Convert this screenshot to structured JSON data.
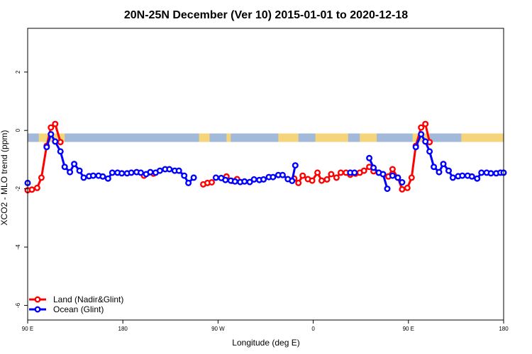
{
  "chart_data": {
    "type": "line",
    "title": "20N-25N December (Ver 10)   2015-01-01 to 2020-12-18",
    "xlabel": "Longitude (deg E)",
    "ylabel": "XCO2 - MLO trend (ppm)",
    "xlim": [
      90,
      540
    ],
    "ylim": [
      -6.5,
      3.5
    ],
    "x_ticks": [
      {
        "value": 90,
        "label": "90 E"
      },
      {
        "value": 180,
        "label": "180"
      },
      {
        "value": 270,
        "label": "90 W"
      },
      {
        "value": 360,
        "label": "0"
      },
      {
        "value": 450,
        "label": "90 E"
      },
      {
        "value": 540,
        "label": "180"
      }
    ],
    "y_ticks": [
      {
        "value": -6,
        "label": "-6"
      },
      {
        "value": -4,
        "label": "-4"
      },
      {
        "value": -2,
        "label": "-2"
      },
      {
        "value": 0,
        "label": "0"
      },
      {
        "value": 2,
        "label": "2"
      }
    ],
    "grid": false,
    "legend_position": "bottom-left",
    "land_mask_band": {
      "y_center": -0.25,
      "ocean_color": "#a3b9d9",
      "land_color": "#f4d57c"
    },
    "land_segments": [
      [
        100.5,
        125
      ],
      [
        252,
        262
      ],
      [
        278,
        282
      ],
      [
        327,
        346
      ],
      [
        362,
        393
      ],
      [
        404,
        420
      ],
      [
        454,
        470
      ],
      [
        500,
        540
      ]
    ],
    "series": [
      {
        "name": "Land (Nadir&Glint)",
        "color": "#ff0000",
        "segments": [
          [
            [
              90,
              -2.05
            ],
            [
              94,
              -2.03
            ],
            [
              99,
              -1.97
            ],
            [
              103,
              -1.62
            ],
            [
              108,
              -0.53
            ],
            [
              112,
              0.1
            ],
            [
              116,
              0.22
            ],
            [
              121,
              -0.4
            ]
          ],
          [
            [
              200,
              -1.55
            ],
            [
              209,
              -1.48
            ]
          ],
          [
            [
              256,
              -1.85
            ],
            [
              260,
              -1.8
            ],
            [
              264,
              -1.78
            ]
          ],
          [
            [
              278,
              -1.58
            ],
            [
              283,
              -1.73
            ],
            [
              288,
              -1.67
            ]
          ],
          [
            [
              342,
              -1.65
            ],
            [
              346,
              -1.8
            ],
            [
              350,
              -1.55
            ],
            [
              355,
              -1.67
            ],
            [
              359,
              -1.72
            ],
            [
              364,
              -1.45
            ],
            [
              368,
              -1.72
            ],
            [
              373,
              -1.68
            ],
            [
              377,
              -1.5
            ],
            [
              382,
              -1.62
            ],
            [
              386,
              -1.45
            ],
            [
              391,
              -1.45
            ],
            [
              395,
              -1.52
            ],
            [
              400,
              -1.48
            ],
            [
              404,
              -1.45
            ],
            [
              408,
              -1.38
            ],
            [
              413,
              -1.25
            ],
            [
              417,
              -1.4
            ],
            [
              422,
              -1.45
            ],
            [
              426,
              -1.5
            ],
            [
              431,
              -1.58
            ],
            [
              435,
              -1.33
            ],
            [
              440,
              -1.62
            ],
            [
              444,
              -2.02
            ],
            [
              449,
              -1.97
            ],
            [
              453,
              -1.62
            ],
            [
              457,
              -0.53
            ],
            [
              462,
              0.1
            ],
            [
              466,
              0.22
            ],
            [
              470,
              -0.4
            ]
          ]
        ]
      },
      {
        "name": "Ocean (Glint)",
        "color": "#0000ff",
        "segments": [
          [
            [
              90,
              -1.8
            ]
          ],
          [
            [
              108,
              -0.57
            ],
            [
              112,
              -0.13
            ],
            [
              116,
              -0.38
            ],
            [
              121,
              -0.72
            ],
            [
              125,
              -1.25
            ],
            [
              130,
              -1.43
            ],
            [
              134,
              -1.15
            ],
            [
              139,
              -1.38
            ],
            [
              143,
              -1.62
            ],
            [
              148,
              -1.57
            ],
            [
              152,
              -1.55
            ],
            [
              157,
              -1.55
            ],
            [
              161,
              -1.58
            ],
            [
              166,
              -1.65
            ],
            [
              170,
              -1.45
            ],
            [
              175,
              -1.45
            ],
            [
              179,
              -1.47
            ],
            [
              184,
              -1.47
            ],
            [
              188,
              -1.45
            ],
            [
              193,
              -1.43
            ],
            [
              197,
              -1.45
            ],
            [
              202,
              -1.5
            ],
            [
              206,
              -1.43
            ],
            [
              211,
              -1.45
            ],
            [
              215,
              -1.38
            ],
            [
              220,
              -1.33
            ],
            [
              224,
              -1.33
            ],
            [
              229,
              -1.38
            ],
            [
              233,
              -1.38
            ],
            [
              238,
              -1.55
            ],
            [
              242,
              -1.8
            ],
            [
              247,
              -1.62
            ]
          ],
          [
            [
              268,
              -1.62
            ],
            [
              273,
              -1.63
            ],
            [
              277,
              -1.7
            ],
            [
              282,
              -1.72
            ],
            [
              286,
              -1.75
            ],
            [
              291,
              -1.77
            ],
            [
              295,
              -1.75
            ],
            [
              300,
              -1.77
            ],
            [
              304,
              -1.68
            ],
            [
              309,
              -1.7
            ],
            [
              313,
              -1.68
            ],
            [
              318,
              -1.6
            ],
            [
              322,
              -1.6
            ],
            [
              327,
              -1.53
            ],
            [
              331,
              -1.53
            ],
            [
              336,
              -1.67
            ],
            [
              340,
              -1.73
            ],
            [
              343,
              -1.2
            ]
          ],
          [
            [
              395,
              -1.45
            ],
            [
              399,
              -1.45
            ]
          ],
          [
            [
              413,
              -0.95
            ],
            [
              417,
              -1.28
            ],
            [
              422,
              -1.45
            ],
            [
              426,
              -1.5
            ],
            [
              430,
              -2.0
            ]
          ],
          [
            [
              435,
              -1.55
            ],
            [
              440,
              -1.62
            ],
            [
              444,
              -1.78
            ]
          ],
          [
            [
              457,
              -0.57
            ],
            [
              462,
              -0.13
            ],
            [
              466,
              -0.38
            ],
            [
              470,
              -0.72
            ],
            [
              474,
              -1.25
            ],
            [
              479,
              -1.43
            ],
            [
              483,
              -1.15
            ],
            [
              488,
              -1.38
            ],
            [
              492,
              -1.62
            ],
            [
              497,
              -1.57
            ],
            [
              501,
              -1.55
            ],
            [
              506,
              -1.55
            ],
            [
              510,
              -1.58
            ],
            [
              515,
              -1.65
            ],
            [
              519,
              -1.45
            ],
            [
              524,
              -1.45
            ],
            [
              528,
              -1.47
            ],
            [
              533,
              -1.47
            ],
            [
              537,
              -1.45
            ],
            [
              540,
              -1.45
            ]
          ]
        ]
      }
    ]
  }
}
